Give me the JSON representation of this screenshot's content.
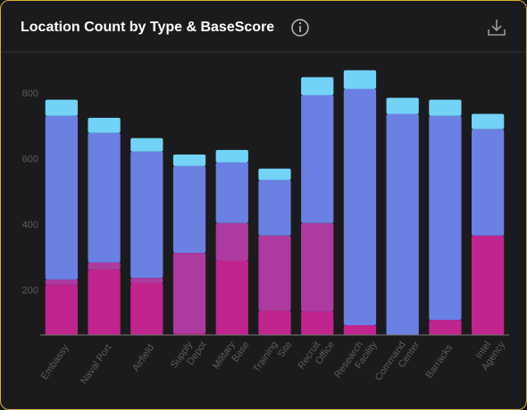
{
  "chart_data": {
    "type": "bar",
    "stacked": true,
    "title": "Location Count by Type & BaseScore",
    "categories": [
      "Embassy",
      "Naval Port",
      "Airfield",
      "Supply\nDepot",
      "Military\nBase",
      "Training\nSite",
      "Recruit\nOffice",
      "Research\nFacility",
      "Command\nCenter",
      "Barracks",
      "Intel\nAgency"
    ],
    "series": [
      {
        "color": "#c0248d",
        "values": [
          218,
          264,
          223,
          70,
          291,
          139,
          136,
          95,
          65,
          111,
          368
        ]
      },
      {
        "color": "#ad3a9f",
        "values": [
          16,
          22,
          16,
          245,
          115,
          229,
          270,
          0,
          0,
          0,
          0
        ]
      },
      {
        "color": "#6a80e2",
        "values": [
          499,
          395,
          385,
          265,
          185,
          169,
          390,
          720,
          674,
          622,
          325
        ]
      },
      {
        "color": "#72d3f7",
        "values": [
          49,
          46,
          41,
          35,
          38,
          35,
          55,
          57,
          49,
          49,
          46
        ]
      }
    ],
    "ylim": [
      65,
      920
    ],
    "yticks": [
      200,
      400,
      600,
      800
    ],
    "grid": false
  }
}
